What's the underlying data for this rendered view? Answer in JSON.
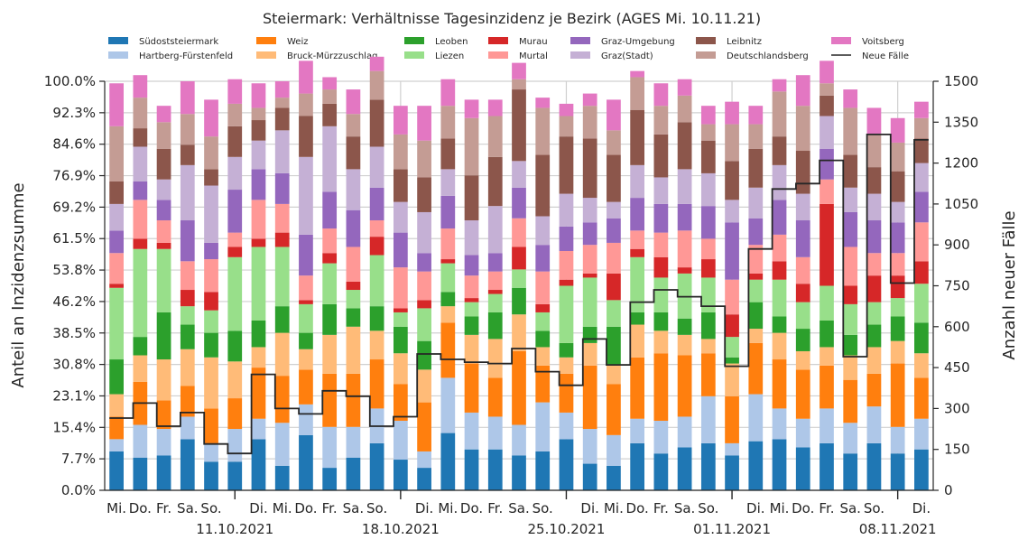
{
  "chart_data": {
    "type": "bar",
    "title": "Steiermark: Verhältnisse Tagesinzidenz je Bezirk (AGES Mi. 10.11.21)",
    "ylabel": "Anteil an Inzidenzsumme",
    "y2label": "Anzahl neuer Fälle",
    "ylim": [
      0,
      100
    ],
    "y2lim": [
      0,
      1500
    ],
    "yticks": [
      "0.0%",
      "7.7%",
      "15.4%",
      "23.1%",
      "30.8%",
      "38.5%",
      "46.2%",
      "53.8%",
      "61.5%",
      "69.2%",
      "76.9%",
      "84.6%",
      "92.3%",
      "100.0%"
    ],
    "y2ticks": [
      "0",
      "150",
      "300",
      "450",
      "600",
      "750",
      "900",
      "1050",
      "1200",
      "1350",
      "1500"
    ],
    "grid": true,
    "legend_position": "top",
    "xtick_labels": [
      "Mi.",
      "Do.",
      "Fr.",
      "Sa.",
      "So.",
      "",
      "Di.",
      "Mi.",
      "Do.",
      "Fr.",
      "Sa.",
      "So.",
      "",
      "Di.",
      "Mi.",
      "Do.",
      "Fr.",
      "Sa.",
      "So.",
      "",
      "Di.",
      "Mi.",
      "Do.",
      "Fr.",
      "Sa.",
      "So.",
      "",
      "Di.",
      "Mi.",
      "Do.",
      "Fr.",
      "Sa.",
      "So.",
      "",
      "Di."
    ],
    "week_labels": [
      {
        "index": 5,
        "label": "11.10.2021"
      },
      {
        "index": 12,
        "label": "18.10.2021"
      },
      {
        "index": 19,
        "label": "25.10.2021"
      },
      {
        "index": 26,
        "label": "01.11.2021"
      },
      {
        "index": 33,
        "label": "08.11.2021"
      }
    ],
    "series": [
      {
        "name": "Südoststeiermark",
        "color": "#1f77b4",
        "values": [
          9.5,
          8.0,
          8.5,
          12.5,
          7.0,
          7.0,
          12.5,
          6.0,
          13.5,
          5.5,
          8.0,
          11.5,
          7.5,
          5.5,
          14.0,
          10.0,
          10.0,
          8.5,
          9.5,
          12.5,
          6.5,
          6.0,
          11.5,
          9.0,
          10.5,
          11.5,
          8.5,
          12.0,
          12.5,
          10.5,
          11.5,
          9.0,
          11.5,
          9.0,
          10.0
        ]
      },
      {
        "name": "Hartberg-Fürstenfeld",
        "color": "#aec7e8",
        "values": [
          3.0,
          8.0,
          6.5,
          5.5,
          4.5,
          8.0,
          5.0,
          10.5,
          7.5,
          10.0,
          7.5,
          8.5,
          9.5,
          4.0,
          13.5,
          9.0,
          8.0,
          7.5,
          12.0,
          6.5,
          8.5,
          7.5,
          6.0,
          8.0,
          7.5,
          11.5,
          3.0,
          11.5,
          7.5,
          7.0,
          8.5,
          7.5,
          9.0,
          6.5,
          7.5
        ]
      },
      {
        "name": "Weiz",
        "color": "#ff7f0e",
        "values": [
          5.5,
          10.5,
          7.0,
          7.5,
          8.5,
          7.5,
          12.5,
          11.5,
          8.5,
          13.0,
          13.0,
          12.0,
          9.0,
          12.0,
          13.5,
          12.0,
          9.5,
          18.0,
          9.0,
          9.5,
          15.5,
          12.5,
          15.0,
          16.5,
          15.0,
          10.5,
          11.5,
          12.5,
          12.0,
          12.0,
          10.5,
          10.5,
          8.0,
          15.5,
          10.0
        ]
      },
      {
        "name": "Bruck-Mürzzuschlag",
        "color": "#ffbb78",
        "values": [
          5.5,
          6.5,
          10.0,
          9.0,
          12.5,
          9.0,
          5.0,
          10.5,
          5.0,
          9.5,
          11.5,
          7.0,
          7.5,
          8.0,
          4.0,
          7.0,
          9.5,
          9.0,
          4.5,
          4.0,
          5.5,
          4.5,
          8.0,
          5.5,
          5.0,
          3.5,
          8.0,
          3.5,
          6.5,
          4.5,
          4.5,
          6.0,
          6.5,
          5.5,
          6.0
        ]
      },
      {
        "name": "Leoben",
        "color": "#2ca02c",
        "values": [
          8.5,
          4.5,
          11.5,
          6.0,
          6.0,
          7.5,
          6.5,
          6.5,
          4.0,
          7.5,
          4.5,
          6.0,
          6.5,
          7.0,
          3.5,
          4.5,
          6.5,
          6.5,
          4.0,
          3.5,
          4.0,
          9.5,
          3.0,
          4.5,
          4.0,
          6.5,
          1.5,
          6.5,
          4.0,
          5.5,
          6.5,
          5.0,
          5.5,
          6.0,
          7.5
        ]
      },
      {
        "name": "Liezen",
        "color": "#98df8a",
        "values": [
          17.5,
          21.5,
          15.5,
          4.5,
          5.5,
          18.0,
          18.0,
          14.5,
          7.0,
          10.0,
          4.5,
          12.5,
          3.5,
          8.0,
          7.0,
          3.5,
          4.5,
          4.5,
          4.5,
          14.0,
          12.0,
          6.5,
          13.5,
          8.5,
          11.0,
          8.5,
          5.0,
          5.5,
          9.0,
          6.5,
          8.5,
          7.5,
          5.5,
          4.5,
          9.5
        ]
      },
      {
        "name": "Murau",
        "color": "#d62728",
        "values": [
          1.0,
          2.5,
          1.5,
          4.0,
          4.5,
          2.5,
          2.0,
          3.5,
          1.0,
          2.5,
          2.0,
          4.5,
          1.0,
          2.0,
          1.0,
          1.0,
          1.0,
          5.5,
          2.0,
          1.5,
          1.0,
          6.5,
          2.0,
          5.0,
          1.5,
          4.5,
          5.5,
          1.5,
          4.5,
          4.5,
          20.0,
          4.5,
          6.5,
          5.5,
          5.5
        ]
      },
      {
        "name": "Murtal",
        "color": "#ff9896",
        "values": [
          7.5,
          9.5,
          5.5,
          7.0,
          8.0,
          3.5,
          9.5,
          7.0,
          6.0,
          6.0,
          8.5,
          4.0,
          10.0,
          7.0,
          7.5,
          5.5,
          4.5,
          7.0,
          8.0,
          7.0,
          7.0,
          7.5,
          4.5,
          6.0,
          9.0,
          5.0,
          8.5,
          7.0,
          6.5,
          6.5,
          6.0,
          9.5,
          5.5,
          5.5,
          9.5
        ]
      },
      {
        "name": "Graz-Umgebung",
        "color": "#9467bd",
        "values": [
          5.5,
          4.5,
          5.0,
          10.0,
          4.0,
          10.5,
          7.5,
          7.5,
          10.0,
          9.0,
          9.0,
          8.0,
          8.5,
          4.5,
          8.0,
          5.0,
          4.5,
          7.5,
          6.5,
          6.0,
          5.5,
          6.0,
          8.0,
          7.0,
          6.5,
          8.0,
          14.0,
          6.5,
          8.5,
          9.0,
          7.5,
          8.5,
          8.0,
          7.5,
          7.5
        ]
      },
      {
        "name": "Graz(Stadt)",
        "color": "#c5b0d5",
        "values": [
          6.5,
          8.5,
          5.0,
          13.5,
          14.0,
          8.0,
          7.0,
          10.5,
          19.0,
          16.0,
          10.0,
          10.0,
          7.5,
          10.0,
          6.5,
          8.5,
          11.5,
          6.5,
          7.0,
          8.0,
          6.0,
          4.0,
          8.0,
          6.5,
          8.5,
          8.0,
          5.5,
          7.5,
          8.5,
          6.5,
          8.0,
          6.0,
          6.5,
          5.0,
          7.0
        ]
      },
      {
        "name": "Leibnitz",
        "color": "#8c564b",
        "values": [
          5.5,
          4.5,
          7.5,
          5.0,
          4.0,
          7.5,
          5.0,
          5.5,
          10.0,
          5.5,
          8.0,
          11.5,
          8.0,
          8.5,
          7.5,
          11.0,
          12.0,
          17.5,
          15.0,
          14.0,
          14.5,
          11.5,
          13.5,
          10.5,
          11.5,
          8.0,
          9.5,
          9.5,
          7.0,
          10.5,
          5.0,
          8.0,
          6.5,
          7.5,
          6.0
        ]
      },
      {
        "name": "Deutschlandsberg",
        "color": "#c49c94",
        "values": [
          13.5,
          7.5,
          6.5,
          7.5,
          8.0,
          5.5,
          3.0,
          2.5,
          5.5,
          3.5,
          5.5,
          7.0,
          8.5,
          9.0,
          8.0,
          14.0,
          10.0,
          2.5,
          11.5,
          5.0,
          8.0,
          6.0,
          8.0,
          7.0,
          6.5,
          4.0,
          9.0,
          6.0,
          11.0,
          11.0,
          3.0,
          11.5,
          8.0,
          7.0,
          5.0
        ]
      },
      {
        "name": "Voitsberg",
        "color": "#e377c2",
        "values": [
          10.5,
          5.5,
          4.0,
          8.0,
          9.0,
          6.0,
          6.0,
          4.0,
          8.0,
          3.0,
          6.0,
          3.5,
          7.0,
          8.5,
          6.5,
          4.5,
          4.0,
          4.0,
          2.5,
          3.0,
          3.0,
          7.5,
          1.5,
          5.5,
          4.0,
          4.5,
          5.5,
          4.5,
          3.0,
          7.5,
          5.5,
          4.5,
          6.5,
          6.0,
          4.0
        ]
      }
    ],
    "line": {
      "name": "Neue Fälle",
      "color": "#262626",
      "values": [
        265,
        320,
        235,
        285,
        170,
        135,
        425,
        300,
        280,
        365,
        345,
        235,
        270,
        500,
        480,
        470,
        465,
        520,
        435,
        385,
        555,
        460,
        690,
        735,
        710,
        675,
        455,
        885,
        1105,
        1125,
        1210,
        490,
        1305,
        760,
        1285
      ]
    },
    "legend": [
      [
        "Südoststeiermark",
        "Hartberg-Fürstenfeld"
      ],
      [
        "Weiz",
        "Bruck-Mürzzuschlag"
      ],
      [
        "Leoben",
        "Liezen"
      ],
      [
        "Murau",
        "Murtal"
      ],
      [
        "Graz-Umgebung",
        "Graz(Stadt)"
      ],
      [
        "Leibnitz",
        "Deutschlandsberg"
      ],
      [
        "Voitsberg",
        "Neue Fälle"
      ]
    ]
  }
}
